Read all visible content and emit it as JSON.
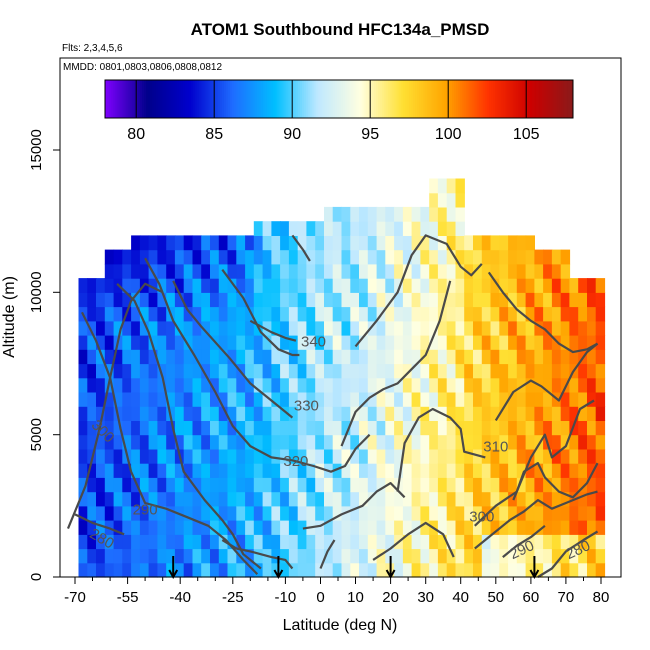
{
  "chart_data": {
    "type": "heatmap",
    "title": "ATOM1 Southbound HFC134a_PMSD",
    "annotation_flights": "Flts: 2,3,4,5,6",
    "annotation_dates": "MMDD: 0801,0803,0806,0808,0812",
    "xlabel": "Latitude (deg N)",
    "ylabel": "Altitude (m)",
    "xlim": [
      -70,
      80
    ],
    "ylim": [
      0,
      17500
    ],
    "x_tick_labels": [
      "-70",
      "-55",
      "-40",
      "-25",
      "-10",
      "0",
      "10",
      "20",
      "30",
      "40",
      "50",
      "60",
      "70",
      "80"
    ],
    "x_tick_values": [
      -70,
      -55,
      -40,
      -25,
      -10,
      0,
      10,
      20,
      30,
      40,
      50,
      60,
      70,
      80
    ],
    "x_minor_ticks": [
      -65,
      -60,
      -50,
      -45,
      -35,
      -30,
      -20,
      -15,
      -5,
      5,
      15,
      25,
      35,
      45,
      55,
      65,
      75
    ],
    "y_tick_labels": [
      "0",
      "5000",
      "10000",
      "15000"
    ],
    "y_tick_values": [
      0,
      5000,
      10000,
      15000
    ],
    "colorbar": {
      "range": [
        78,
        108
      ],
      "tick_labels": [
        "80",
        "85",
        "90",
        "95",
        "100",
        "105"
      ],
      "tick_values": [
        80,
        85,
        90,
        95,
        100,
        105
      ],
      "colors": [
        "#7f00ff",
        "#00008b",
        "#0000cd",
        "#1e6cff",
        "#00bfff",
        "#bfe8ff",
        "#ffffe0",
        "#ffe033",
        "#ffa500",
        "#ff3300",
        "#cc0000",
        "#8b1a1a"
      ]
    },
    "field": {
      "description": "HFC134a mixing ratio (ppt) by latitude and altitude",
      "lat_columns": [
        -70,
        -65,
        -60,
        -55,
        -50,
        -45,
        -40,
        -35,
        -30,
        -25,
        -20,
        -15,
        -10,
        -5,
        0,
        5,
        10,
        15,
        20,
        25,
        30,
        35,
        40,
        45,
        50,
        55,
        60,
        65,
        70,
        75,
        80
      ],
      "alt_rows": [
        250,
        750,
        1250,
        1750,
        2250,
        2750,
        3250,
        3750,
        4250,
        4750,
        5250,
        5750,
        6250,
        6750,
        7250,
        7750,
        8250,
        8750,
        9250,
        9750,
        10250,
        10750,
        11250,
        11750,
        12250,
        12750,
        13250
      ]
    },
    "contour_labels": [
      {
        "text": "340",
        "lat": -2,
        "alt": 8100
      },
      {
        "text": "330",
        "lat": -4,
        "alt": 5850
      },
      {
        "text": "320",
        "lat": -7,
        "alt": 3900
      },
      {
        "text": "310",
        "lat": 50,
        "alt": 4400
      },
      {
        "text": "300",
        "lat": 46,
        "alt": 1950
      },
      {
        "text": "300",
        "lat": -63,
        "alt": 5000
      },
      {
        "text": "290",
        "lat": -50,
        "alt": 2200
      },
      {
        "text": "290",
        "lat": 58,
        "alt": 800
      },
      {
        "text": "280",
        "lat": -63,
        "alt": 1200
      },
      {
        "text": "280",
        "lat": 74,
        "alt": 800
      }
    ],
    "arrows_lat": [
      -42,
      -12,
      20,
      61
    ]
  }
}
